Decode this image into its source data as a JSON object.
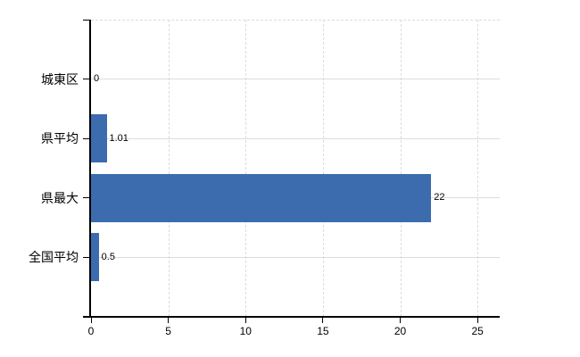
{
  "chart_data": {
    "type": "bar",
    "orientation": "horizontal",
    "title": "",
    "xlabel": "",
    "ylabel": "",
    "categories": [
      "城東区",
      "県平均",
      "県最大",
      "全国平均"
    ],
    "values": [
      0,
      1.01,
      22,
      0.5
    ],
    "value_labels": [
      "0",
      "1.01",
      "22",
      "0.5"
    ],
    "x_ticks": [
      {
        "value": 0,
        "label": "0"
      },
      {
        "value": 5,
        "label": "5"
      },
      {
        "value": 10,
        "label": "10"
      },
      {
        "value": 15,
        "label": "15"
      },
      {
        "value": 20,
        "label": "20"
      },
      {
        "value": 25,
        "label": "25"
      }
    ],
    "xlim": [
      0,
      26.4
    ],
    "grid": true,
    "legend": null,
    "colors": {
      "bar": "#3c6cae",
      "axis": "#000000",
      "gridline": "#d9ded9",
      "background": "#ffffff",
      "text": "#000000"
    }
  }
}
